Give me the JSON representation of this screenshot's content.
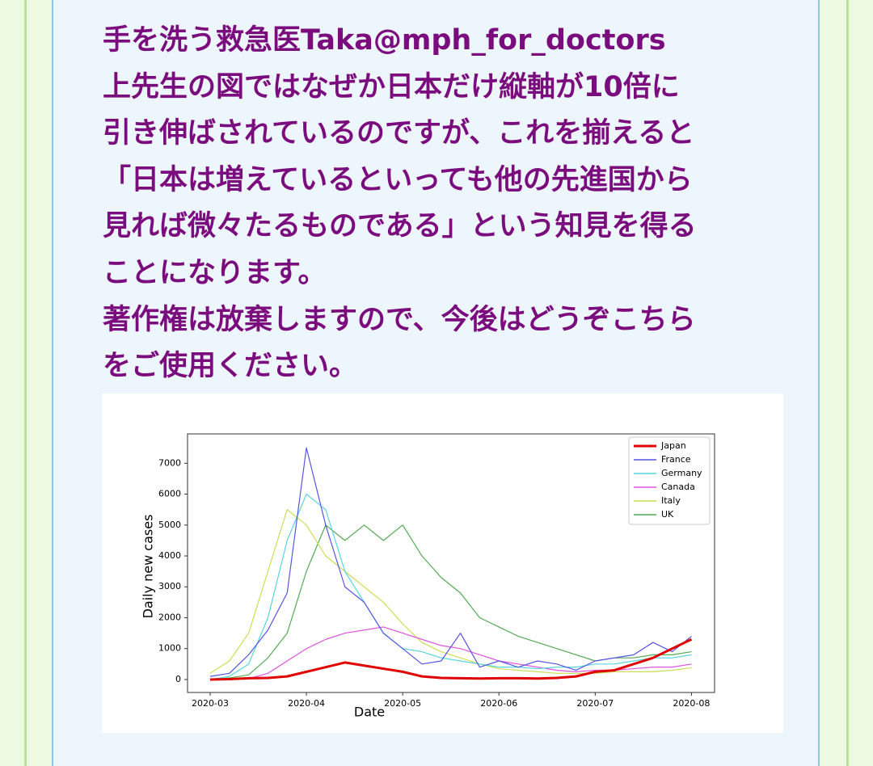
{
  "post": {
    "lines": [
      "手を洗う救急医Taka@mph_for_doctors",
      "上先生の図ではなぜか日本だけ縦軸が10倍に",
      "引き伸ばされているのですが、これを揃えると",
      "「日本は増えているといっても他の先進国から",
      "見れば微々たるものである」という知見を得る",
      "ことになります。",
      "著作権は放棄しますので、今後はどうぞこちら",
      "をご使用ください。"
    ]
  },
  "chart_data": {
    "type": "line",
    "x_label": "Date",
    "y_label": "Daily new cases",
    "x": [
      0,
      0.2,
      0.4,
      0.6,
      0.8,
      1,
      1.2,
      1.4,
      1.6,
      1.8,
      2,
      2.2,
      2.4,
      2.6,
      2.8,
      3,
      3.2,
      3.4,
      3.6,
      3.8,
      4,
      4.2,
      4.4,
      4.6,
      4.8,
      5
    ],
    "xlim": [
      -0.235,
      5.24
    ],
    "xticks": [
      {
        "value": 0,
        "label": "2020-03"
      },
      {
        "value": 1,
        "label": "2020-04"
      },
      {
        "value": 2,
        "label": "2020-05"
      },
      {
        "value": 3,
        "label": "2020-06"
      },
      {
        "value": 4,
        "label": "2020-07"
      },
      {
        "value": 5,
        "label": "2020-08"
      }
    ],
    "ylim": [
      -420,
      7950
    ],
    "yticks": [
      0,
      1000,
      2000,
      3000,
      4000,
      5000,
      6000,
      7000
    ],
    "legend": "upper right",
    "series": [
      {
        "name": "Japan",
        "color": "#e00000",
        "values": [
          0,
          10,
          40,
          50,
          100,
          250,
          400,
          550,
          450,
          350,
          250,
          100,
          50,
          40,
          30,
          40,
          40,
          30,
          50,
          100,
          250,
          300,
          500,
          700,
          1000,
          1300
        ]
      },
      {
        "name": "France",
        "color": "#5555e6",
        "values": [
          100,
          200,
          800,
          1600,
          2800,
          7500,
          5000,
          3000,
          2500,
          1500,
          1000,
          500,
          600,
          1500,
          400,
          600,
          400,
          600,
          500,
          300,
          600,
          700,
          800,
          1200,
          900,
          1400
        ]
      },
      {
        "name": "Germany",
        "color": "#55d5dd",
        "values": [
          0,
          100,
          500,
          2000,
          4500,
          6000,
          5500,
          3500,
          2500,
          1500,
          1000,
          900,
          700,
          600,
          500,
          400,
          400,
          350,
          400,
          400,
          500,
          500,
          600,
          700,
          700,
          800
        ]
      },
      {
        "name": "Canada",
        "color": "#dd55dd",
        "values": [
          0,
          0,
          30,
          200,
          600,
          1000,
          1300,
          1500,
          1600,
          1700,
          1500,
          1300,
          1100,
          1000,
          800,
          600,
          500,
          400,
          300,
          250,
          300,
          300,
          350,
          400,
          400,
          500
        ]
      },
      {
        "name": "Italy",
        "color": "#ccdd55",
        "values": [
          200,
          600,
          1500,
          3500,
          5500,
          5000,
          4000,
          3500,
          3000,
          2500,
          1800,
          1200,
          900,
          700,
          500,
          350,
          300,
          250,
          200,
          200,
          200,
          250,
          250,
          250,
          300,
          380
        ]
      },
      {
        "name": "UK",
        "color": "#55aa55",
        "values": [
          0,
          50,
          150,
          700,
          1500,
          3500,
          5000,
          4500,
          5000,
          4500,
          5000,
          4000,
          3300,
          2800,
          2000,
          1700,
          1400,
          1200,
          1000,
          800,
          600,
          700,
          700,
          800,
          800,
          900
        ]
      }
    ]
  }
}
